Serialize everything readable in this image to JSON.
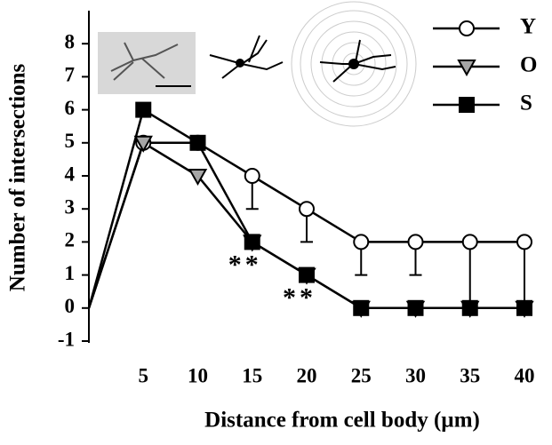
{
  "chart_data": {
    "type": "line",
    "x_label": "Distance from cell body (µm)",
    "y_label": "Number of intersections",
    "x": [
      0,
      5,
      10,
      15,
      20,
      25,
      30,
      35,
      40
    ],
    "xlim": [
      0,
      40
    ],
    "xticks": [
      5,
      10,
      15,
      20,
      25,
      30,
      35,
      40
    ],
    "ylim": [
      -1,
      9
    ],
    "yticks": [
      -1,
      0,
      1,
      2,
      3,
      4,
      5,
      6,
      7,
      8
    ],
    "series": [
      {
        "name": "Y",
        "color": "#ffffff",
        "marker": "circle",
        "values": [
          0,
          5,
          5,
          4,
          3,
          2,
          2,
          2,
          2
        ],
        "errors": [
          null,
          null,
          null,
          1,
          1,
          1,
          1,
          2,
          2
        ]
      },
      {
        "name": "O",
        "color": "#a6a6a6",
        "marker": "triangle-down",
        "values": [
          0,
          5,
          4,
          2,
          1,
          0,
          0,
          0,
          0
        ]
      },
      {
        "name": "S",
        "color": "#000000",
        "marker": "square",
        "values": [
          0,
          6,
          5,
          2,
          1,
          0,
          0,
          0,
          0
        ]
      }
    ],
    "annotations": [
      {
        "text": "**",
        "x": 15
      },
      {
        "text": "**",
        "x": 20
      }
    ]
  }
}
